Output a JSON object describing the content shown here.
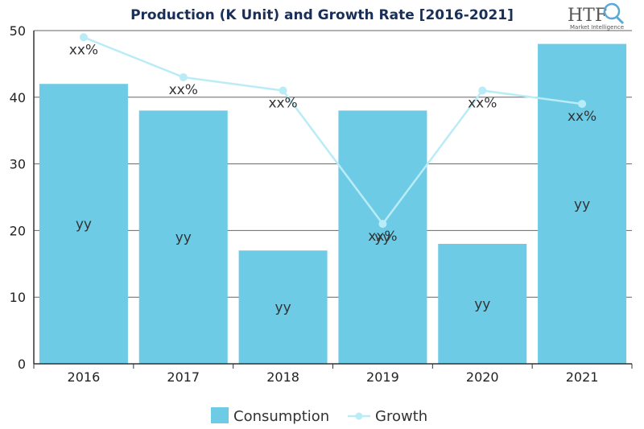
{
  "chart_data": {
    "type": "bar",
    "title": "Production (K Unit) and Growth Rate [2016-2021]",
    "categories": [
      "2016",
      "2017",
      "2018",
      "2019",
      "2020",
      "2021"
    ],
    "ylim": [
      0,
      50
    ],
    "yticks": [
      "0",
      "10",
      "20",
      "30",
      "40",
      "50"
    ],
    "grid": true,
    "legend_position": "bottom",
    "series": [
      {
        "name": "Consumption",
        "kind": "bar",
        "color": "#6dcbe6",
        "values": [
          42,
          38,
          17,
          38,
          18,
          48
        ],
        "labels": [
          "yy",
          "yy",
          "yy",
          "yy",
          "yy",
          "yy"
        ]
      },
      {
        "name": "Growth",
        "kind": "line",
        "color": "#b9ecf6",
        "values": [
          49,
          43,
          41,
          21,
          41,
          39
        ],
        "labels": [
          "xx%",
          "xx%",
          "xx%",
          "xx%",
          "xx%",
          "xx%"
        ]
      }
    ]
  },
  "logo": {
    "text": "HTF",
    "subtext": "Market Intelligence",
    "icon": "magnifier-globe-icon"
  }
}
